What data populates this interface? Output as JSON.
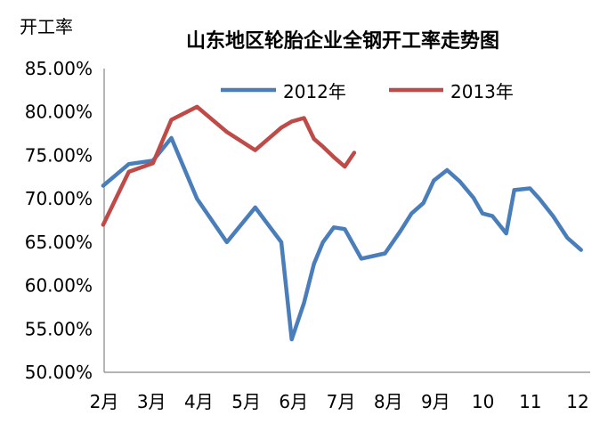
{
  "chart_data": {
    "type": "line",
    "title": "山东地区轮胎企业全钢开工率走势图",
    "ylabel": "开工率",
    "xlabel": "",
    "ylim": [
      0.5,
      0.85
    ],
    "y_ticks": [
      "85.00%",
      "80.00%",
      "75.00%",
      "70.00%",
      "65.00%",
      "60.00%",
      "55.00%",
      "50.00%"
    ],
    "y_tick_values": [
      0.85,
      0.8,
      0.75,
      0.7,
      0.65,
      0.6,
      0.55,
      0.5
    ],
    "x_ticks": [
      "2月",
      "3月",
      "4月",
      "5月",
      "6月",
      "7月",
      "8月",
      "9月",
      "10",
      "11",
      "12"
    ],
    "x_tick_values": [
      2,
      3,
      4,
      5,
      6,
      7,
      8,
      9,
      10,
      11,
      12
    ],
    "xlim": [
      1.98,
      12.07
    ],
    "grid": false,
    "legend_position": "top",
    "series": [
      {
        "name": "2012年",
        "color": "#4a7ebb",
        "x": [
          1.98,
          2.52,
          3.03,
          3.42,
          3.96,
          4.59,
          5.19,
          5.74,
          5.96,
          6.22,
          6.43,
          6.62,
          6.85,
          7.08,
          7.43,
          7.93,
          8.26,
          8.49,
          8.74,
          8.96,
          9.24,
          9.51,
          9.8,
          9.99,
          10.2,
          10.49,
          10.66,
          10.99,
          11.19,
          11.48,
          11.78,
          12.07
        ],
        "y": [
          0.715,
          0.74,
          0.744,
          0.77,
          0.7,
          0.65,
          0.69,
          0.65,
          0.538,
          0.58,
          0.625,
          0.65,
          0.667,
          0.665,
          0.631,
          0.637,
          0.663,
          0.683,
          0.695,
          0.721,
          0.733,
          0.72,
          0.701,
          0.683,
          0.68,
          0.66,
          0.71,
          0.712,
          0.7,
          0.68,
          0.655,
          0.641
        ]
      },
      {
        "name": "2013年",
        "color": "#be4b48",
        "x": [
          1.98,
          2.52,
          3.03,
          3.42,
          3.96,
          4.59,
          5.19,
          5.74,
          5.96,
          6.22,
          6.43,
          6.62,
          6.85,
          7.08
        ],
        "y": [
          0.67,
          0.731,
          0.741,
          0.791,
          0.806,
          0.777,
          0.756,
          0.782,
          0.789,
          0.793,
          0.769,
          0.76,
          0.748,
          0.737
        ]
      }
    ],
    "extra_point_2013": {
      "x": 7.28,
      "y": 0.753
    }
  }
}
